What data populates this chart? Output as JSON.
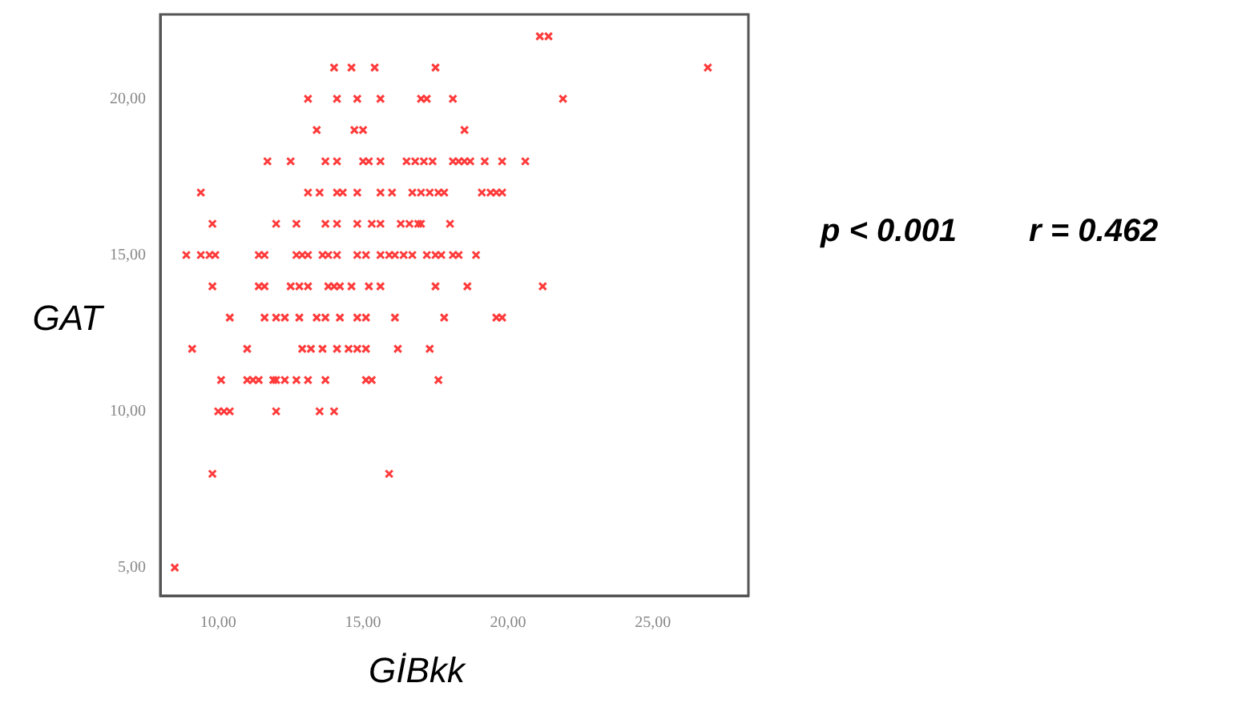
{
  "chart_data": {
    "type": "scatter",
    "xlabel": "GİBkk",
    "ylabel": "GAT",
    "annotations": [
      "p < 0.001",
      "r = 0.462"
    ],
    "color": "#ff3b3b",
    "marker": "cross",
    "legend": false,
    "xlim": [
      8,
      28.3
    ],
    "ylim": [
      4.1,
      22.7
    ],
    "xticks": [
      {
        "value": 10,
        "label": "10,00"
      },
      {
        "value": 15,
        "label": "15,00"
      },
      {
        "value": 20,
        "label": "20,00"
      },
      {
        "value": 25,
        "label": "25,00"
      }
    ],
    "yticks": [
      {
        "value": 5,
        "label": "5,00"
      },
      {
        "value": 10,
        "label": "10,00"
      },
      {
        "value": 15,
        "label": "15,00"
      },
      {
        "value": 20,
        "label": "20,00"
      }
    ],
    "x": [
      21.1,
      21.4,
      14.0,
      14.6,
      15.4,
      17.5,
      26.9,
      13.1,
      14.1,
      14.8,
      15.6,
      17.0,
      17.2,
      18.1,
      21.9,
      13.4,
      14.7,
      15.0,
      18.5,
      11.7,
      12.5,
      13.7,
      14.1,
      15.0,
      15.2,
      15.6,
      16.5,
      16.8,
      17.1,
      17.4,
      18.1,
      18.3,
      18.5,
      18.7,
      19.2,
      19.8,
      20.6,
      9.4,
      13.1,
      13.5,
      14.1,
      14.3,
      14.8,
      15.6,
      16.0,
      16.7,
      17.0,
      17.3,
      17.6,
      17.8,
      19.1,
      19.4,
      19.6,
      19.8,
      9.8,
      12.0,
      12.7,
      13.7,
      14.1,
      14.8,
      15.3,
      15.6,
      16.3,
      16.6,
      16.9,
      17.0,
      18.0,
      8.9,
      9.4,
      9.7,
      9.9,
      11.4,
      11.6,
      12.7,
      12.9,
      13.1,
      13.6,
      13.8,
      14.1,
      14.8,
      15.1,
      15.6,
      15.9,
      16.1,
      16.4,
      16.7,
      17.2,
      17.5,
      17.7,
      18.1,
      18.3,
      18.9,
      9.8,
      11.4,
      11.6,
      12.5,
      12.8,
      13.1,
      13.8,
      14.0,
      14.2,
      14.6,
      15.2,
      15.6,
      17.5,
      18.6,
      21.2,
      10.4,
      11.6,
      12.0,
      12.3,
      12.8,
      13.4,
      13.7,
      14.2,
      14.8,
      15.1,
      16.1,
      17.8,
      19.6,
      19.8,
      9.1,
      11.0,
      12.9,
      13.2,
      13.6,
      14.1,
      14.5,
      14.8,
      15.1,
      16.2,
      17.3,
      10.1,
      11.0,
      11.2,
      11.4,
      11.9,
      12.0,
      12.3,
      12.7,
      13.1,
      13.7,
      15.1,
      15.3,
      17.6,
      10.0,
      10.2,
      10.4,
      12.0,
      13.5,
      14.0,
      9.8,
      15.9,
      8.5
    ],
    "values": [
      22,
      22,
      21,
      21,
      21,
      21,
      21,
      20,
      20,
      20,
      20,
      20,
      20,
      20,
      20,
      19,
      19,
      19,
      19,
      18,
      18,
      18,
      18,
      18,
      18,
      18,
      18,
      18,
      18,
      18,
      18,
      18,
      18,
      18,
      18,
      18,
      18,
      17,
      17,
      17,
      17,
      17,
      17,
      17,
      17,
      17,
      17,
      17,
      17,
      17,
      17,
      17,
      17,
      17,
      16,
      16,
      16,
      16,
      16,
      16,
      16,
      16,
      16,
      16,
      16,
      16,
      16,
      15,
      15,
      15,
      15,
      15,
      15,
      15,
      15,
      15,
      15,
      15,
      15,
      15,
      15,
      15,
      15,
      15,
      15,
      15,
      15,
      15,
      15,
      15,
      15,
      15,
      14,
      14,
      14,
      14,
      14,
      14,
      14,
      14,
      14,
      14,
      14,
      14,
      14,
      14,
      14,
      13,
      13,
      13,
      13,
      13,
      13,
      13,
      13,
      13,
      13,
      13,
      13,
      13,
      13,
      12,
      12,
      12,
      12,
      12,
      12,
      12,
      12,
      12,
      12,
      12,
      11,
      11,
      11,
      11,
      11,
      11,
      11,
      11,
      11,
      11,
      11,
      11,
      11,
      10,
      10,
      10,
      10,
      10,
      10,
      8,
      8,
      5
    ]
  }
}
